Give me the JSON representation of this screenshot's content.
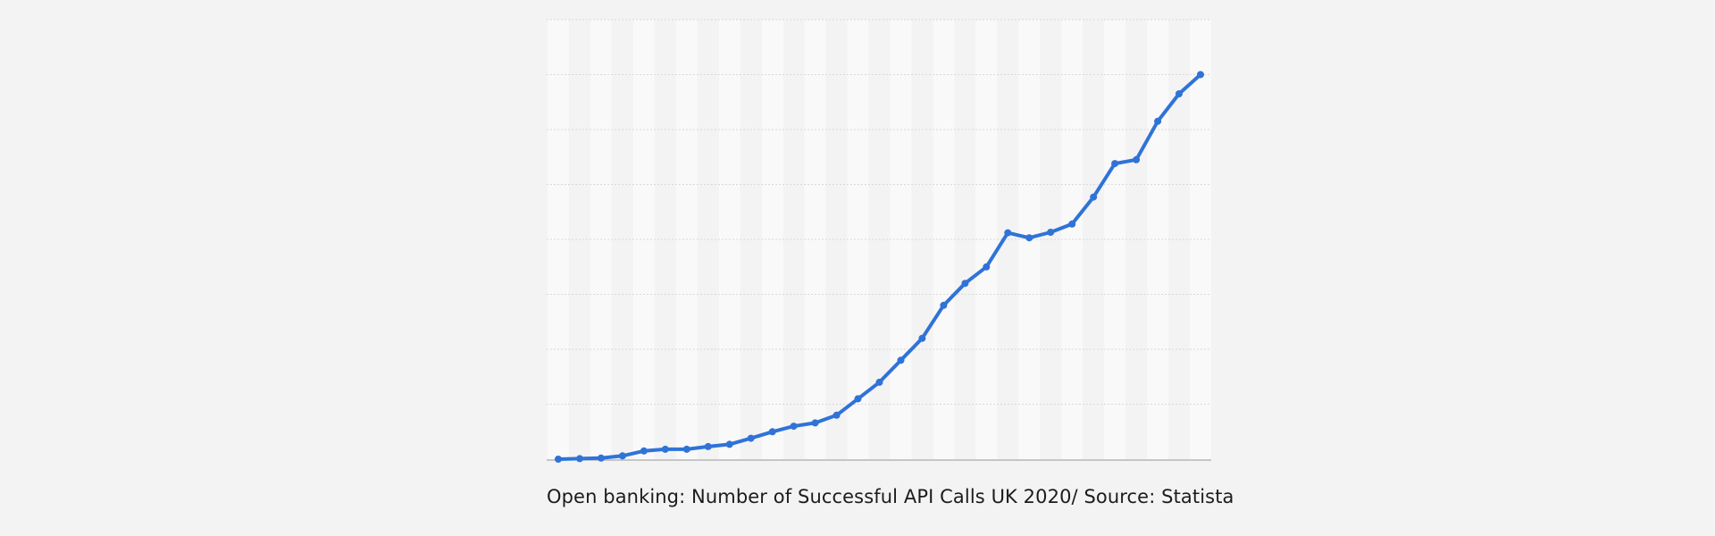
{
  "chart_data": {
    "type": "line",
    "title": "",
    "xlabel": "",
    "ylabel": "",
    "grid": true,
    "ylim": [
      0,
      8
    ],
    "series": [
      {
        "name": "Successful API calls",
        "color": "#2f73d8",
        "values": [
          0,
          0.01,
          0.02,
          0.06,
          0.15,
          0.18,
          0.18,
          0.23,
          0.27,
          0.38,
          0.5,
          0.6,
          0.66,
          0.8,
          1.1,
          1.4,
          1.8,
          2.2,
          2.8,
          3.2,
          3.5,
          4.12,
          4.03,
          4.13,
          4.28,
          4.77,
          5.38,
          5.45,
          6.15,
          6.65,
          7.0
        ]
      }
    ]
  },
  "caption": "Open banking: Number of Successful API Calls UK 2020/ Source: Statista"
}
